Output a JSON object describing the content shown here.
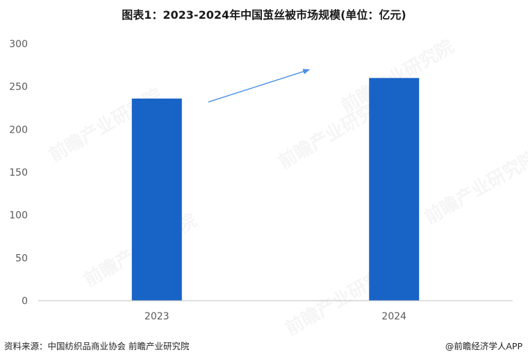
{
  "chart_data": {
    "type": "bar",
    "title": "图表1：2023-2024年中国茧丝被市场规模(单位：亿元)",
    "categories": [
      "2023",
      "2024"
    ],
    "values": [
      236,
      260
    ],
    "ylim": [
      0,
      300
    ],
    "yticks": [
      0,
      50,
      100,
      150,
      200,
      250,
      300
    ],
    "grid": false,
    "bar_color": "#1863C6",
    "axis_color": "#BFBFBF",
    "annotation": "trend arrow from 2023 bar toward 2024 bar",
    "arrow_color": "#4A90E2"
  },
  "footer": {
    "source": "资料来源：中国纺织品商业协会 前瞻产业研究院",
    "brand": "@前瞻经济学人APP"
  },
  "watermark": "前瞻产业研究院"
}
